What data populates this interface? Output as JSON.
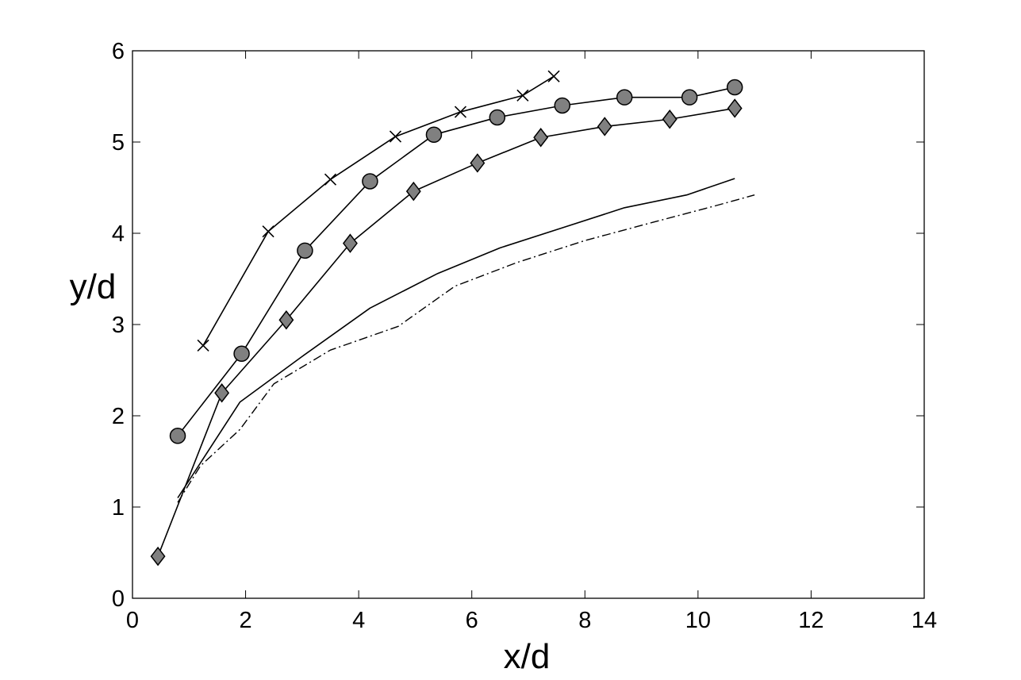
{
  "chart_data": {
    "type": "line",
    "xlabel": "x/d",
    "ylabel": "y/d",
    "xlim": [
      0,
      14
    ],
    "ylim": [
      0,
      6
    ],
    "xticks": [
      0,
      2,
      4,
      6,
      8,
      10,
      12,
      14
    ],
    "yticks": [
      0,
      1,
      2,
      3,
      4,
      5,
      6
    ],
    "grid": false,
    "legend": "none",
    "series": [
      {
        "style": "cross-marker",
        "color": "#000000",
        "x": [
          1.25,
          2.4,
          3.5,
          4.65,
          5.8,
          6.9,
          7.45
        ],
        "y": [
          2.77,
          4.02,
          4.59,
          5.06,
          5.33,
          5.51,
          5.72
        ]
      },
      {
        "style": "circle-marker",
        "color": "#000000",
        "marker_fill": "#808080",
        "x": [
          0.8,
          1.93,
          3.05,
          4.2,
          5.33,
          6.45,
          7.6,
          8.7,
          9.85,
          10.65
        ],
        "y": [
          1.78,
          2.68,
          3.81,
          4.57,
          5.08,
          5.27,
          5.4,
          5.49,
          5.49,
          5.6
        ]
      },
      {
        "style": "diamond-marker",
        "color": "#000000",
        "marker_fill": "#808080",
        "x": [
          0.45,
          1.58,
          2.72,
          3.85,
          4.97,
          6.1,
          7.22,
          8.35,
          9.5,
          10.65
        ],
        "y": [
          0.46,
          2.25,
          3.05,
          3.89,
          4.46,
          4.77,
          5.05,
          5.17,
          5.25,
          5.37
        ]
      },
      {
        "style": "solid",
        "color": "#000000",
        "x": [
          0.8,
          1.9,
          3.0,
          4.2,
          5.4,
          6.5,
          7.6,
          8.7,
          9.8,
          10.65
        ],
        "y": [
          1.1,
          2.15,
          2.65,
          3.18,
          3.56,
          3.84,
          4.06,
          4.28,
          4.42,
          4.6
        ]
      },
      {
        "style": "dash-dot",
        "color": "#000000",
        "x": [
          0.8,
          1.2,
          1.9,
          2.5,
          3.5,
          4.7,
          5.7,
          6.8,
          8.0,
          9.2,
          10.3,
          11.0
        ],
        "y": [
          1.05,
          1.45,
          1.85,
          2.35,
          2.72,
          2.98,
          3.42,
          3.68,
          3.92,
          4.12,
          4.3,
          4.42
        ]
      }
    ]
  }
}
